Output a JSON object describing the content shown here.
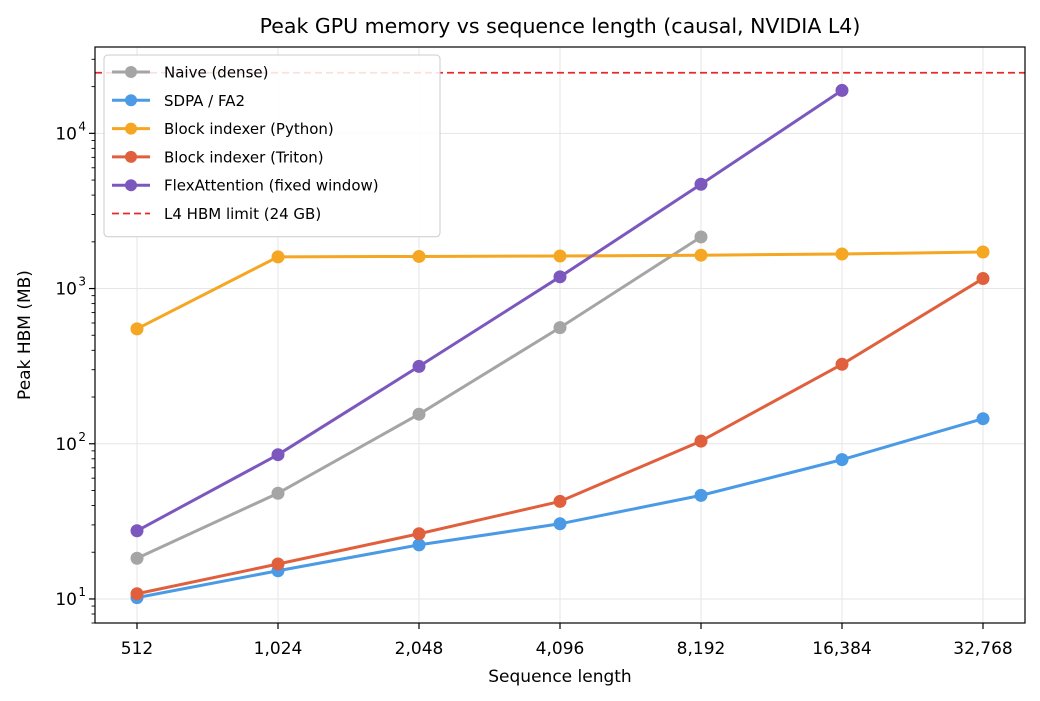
{
  "chart_data": {
    "type": "line",
    "title": "Peak GPU memory vs sequence length (causal, NVIDIA L4)",
    "xlabel": "Sequence length",
    "ylabel": "Peak HBM (MB)",
    "xscale": "log2",
    "yscale": "log",
    "x": [
      512,
      1024,
      2048,
      4096,
      8192,
      16384,
      32768
    ],
    "x_tick_labels": [
      "512",
      "1,024",
      "2,048",
      "4,096",
      "8,192",
      "16,384",
      "32,768"
    ],
    "y_tick_values": [
      10,
      100,
      1000,
      10000
    ],
    "y_tick_labels": [
      {
        "base": "10",
        "exp": "1"
      },
      {
        "base": "10",
        "exp": "2"
      },
      {
        "base": "10",
        "exp": "3"
      },
      {
        "base": "10",
        "exp": "4"
      }
    ],
    "ylim": [
      7,
      36000
    ],
    "grid": true,
    "legend_position": "upper-left",
    "series": [
      {
        "name": "Naive (dense)",
        "color": "#a5a5a5",
        "values": [
          18.3,
          48,
          155,
          560,
          2150,
          null,
          null
        ]
      },
      {
        "name": "SDPA / FA2",
        "color": "#4a9ae6",
        "values": [
          10.2,
          15.2,
          22.3,
          30.5,
          46.5,
          79,
          145
        ]
      },
      {
        "name": "Block indexer (Python)",
        "color": "#f5a623",
        "values": [
          550,
          1600,
          1610,
          1620,
          1640,
          1670,
          1720
        ]
      },
      {
        "name": "Block indexer (Triton)",
        "color": "#e0603e",
        "values": [
          10.8,
          16.8,
          26.3,
          42.5,
          104,
          325,
          1160
        ]
      },
      {
        "name": "FlexAttention (fixed window)",
        "color": "#7c58be",
        "values": [
          27.5,
          85,
          315,
          1190,
          4700,
          18900,
          null
        ]
      }
    ],
    "reference_lines": [
      {
        "name": "L4 HBM limit (24 GB)",
        "y": 24576,
        "color": "#e8282b",
        "style": "dashed"
      }
    ]
  }
}
